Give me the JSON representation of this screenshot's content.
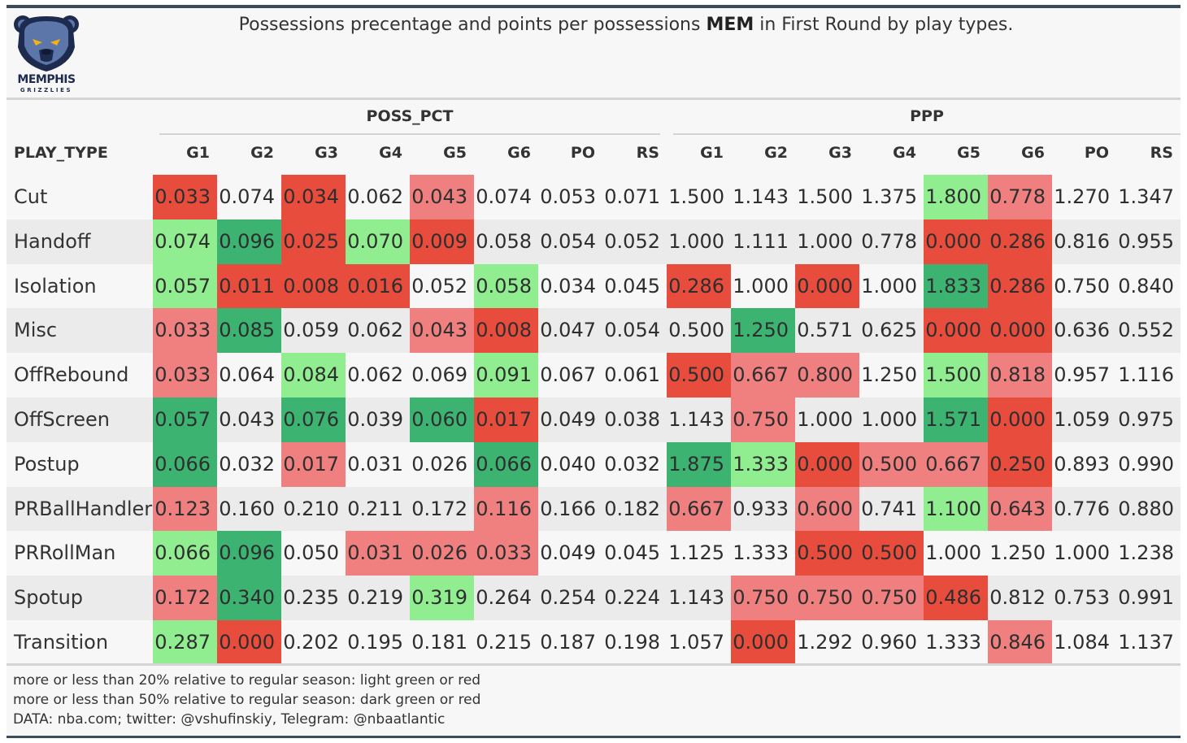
{
  "title": {
    "prefix": "Possessions precentage and points per possessions ",
    "team": "MEM",
    "suffix": " in First Round by play types."
  },
  "logo": {
    "word": "MEMPHIS",
    "sub": "GRIZZLIES"
  },
  "legend_colors": {
    "light_green": "#90ee90",
    "dark_green": "#3cb371",
    "light_red": "#f08080",
    "dark_red": "#e74c3c"
  },
  "chart_data": {
    "type": "table",
    "row_header": "PLAY_TYPE",
    "groups": [
      "POSS_PCT",
      "PPP"
    ],
    "columns": [
      "G1",
      "G2",
      "G3",
      "G4",
      "G5",
      "G6",
      "PO",
      "RS"
    ],
    "rows": [
      {
        "play_type": "Cut",
        "poss_pct": [
          "0.033",
          "0.074",
          "0.034",
          "0.062",
          "0.043",
          "0.074",
          "0.053",
          "0.071"
        ],
        "poss_pct_color": [
          "dr",
          "",
          "dr",
          "",
          "lr",
          "",
          "",
          ""
        ],
        "ppp": [
          "1.500",
          "1.143",
          "1.500",
          "1.375",
          "1.800",
          "0.778",
          "1.270",
          "1.347"
        ],
        "ppp_color": [
          "",
          "",
          "",
          "",
          "lg",
          "lr",
          "",
          ""
        ]
      },
      {
        "play_type": "Handoff",
        "poss_pct": [
          "0.074",
          "0.096",
          "0.025",
          "0.070",
          "0.009",
          "0.058",
          "0.054",
          "0.052"
        ],
        "poss_pct_color": [
          "lg",
          "dg",
          "dr",
          "lg",
          "dr",
          "",
          "",
          ""
        ],
        "ppp": [
          "1.000",
          "1.111",
          "1.000",
          "0.778",
          "0.000",
          "0.286",
          "0.816",
          "0.955"
        ],
        "ppp_color": [
          "",
          "",
          "",
          "",
          "dr",
          "dr",
          "",
          ""
        ]
      },
      {
        "play_type": "Isolation",
        "poss_pct": [
          "0.057",
          "0.011",
          "0.008",
          "0.016",
          "0.052",
          "0.058",
          "0.034",
          "0.045"
        ],
        "poss_pct_color": [
          "lg",
          "dr",
          "dr",
          "dr",
          "",
          "lg",
          "",
          ""
        ],
        "ppp": [
          "0.286",
          "1.000",
          "0.000",
          "1.000",
          "1.833",
          "0.286",
          "0.750",
          "0.840"
        ],
        "ppp_color": [
          "dr",
          "",
          "dr",
          "",
          "dg",
          "dr",
          "",
          ""
        ]
      },
      {
        "play_type": "Misc",
        "poss_pct": [
          "0.033",
          "0.085",
          "0.059",
          "0.062",
          "0.043",
          "0.008",
          "0.047",
          "0.054"
        ],
        "poss_pct_color": [
          "lr",
          "dg",
          "",
          "",
          "lr",
          "dr",
          "",
          ""
        ],
        "ppp": [
          "0.500",
          "1.250",
          "0.571",
          "0.625",
          "0.000",
          "0.000",
          "0.636",
          "0.552"
        ],
        "ppp_color": [
          "",
          "dg",
          "",
          "",
          "dr",
          "dr",
          "",
          ""
        ]
      },
      {
        "play_type": "OffRebound",
        "poss_pct": [
          "0.033",
          "0.064",
          "0.084",
          "0.062",
          "0.069",
          "0.091",
          "0.067",
          "0.061"
        ],
        "poss_pct_color": [
          "lr",
          "",
          "lg",
          "",
          "",
          "lg",
          "",
          ""
        ],
        "ppp": [
          "0.500",
          "0.667",
          "0.800",
          "1.250",
          "1.500",
          "0.818",
          "0.957",
          "1.116"
        ],
        "ppp_color": [
          "dr",
          "lr",
          "lr",
          "",
          "lg",
          "lr",
          "",
          ""
        ]
      },
      {
        "play_type": "OffScreen",
        "poss_pct": [
          "0.057",
          "0.043",
          "0.076",
          "0.039",
          "0.060",
          "0.017",
          "0.049",
          "0.038"
        ],
        "poss_pct_color": [
          "dg",
          "",
          "dg",
          "",
          "dg",
          "dr",
          "",
          ""
        ],
        "ppp": [
          "1.143",
          "0.750",
          "1.000",
          "1.000",
          "1.571",
          "0.000",
          "1.059",
          "0.975"
        ],
        "ppp_color": [
          "",
          "lr",
          "",
          "",
          "dg",
          "dr",
          "",
          ""
        ]
      },
      {
        "play_type": "Postup",
        "poss_pct": [
          "0.066",
          "0.032",
          "0.017",
          "0.031",
          "0.026",
          "0.066",
          "0.040",
          "0.032"
        ],
        "poss_pct_color": [
          "dg",
          "",
          "lr",
          "",
          "",
          "dg",
          "",
          ""
        ],
        "ppp": [
          "1.875",
          "1.333",
          "0.000",
          "0.500",
          "0.667",
          "0.250",
          "0.893",
          "0.990"
        ],
        "ppp_color": [
          "dg",
          "lg",
          "dr",
          "lr",
          "lr",
          "dr",
          "",
          ""
        ]
      },
      {
        "play_type": "PRBallHandler",
        "poss_pct": [
          "0.123",
          "0.160",
          "0.210",
          "0.211",
          "0.172",
          "0.116",
          "0.166",
          "0.182"
        ],
        "poss_pct_color": [
          "lr",
          "",
          "",
          "",
          "",
          "lr",
          "",
          ""
        ],
        "ppp": [
          "0.667",
          "0.933",
          "0.600",
          "0.741",
          "1.100",
          "0.643",
          "0.776",
          "0.880"
        ],
        "ppp_color": [
          "lr",
          "",
          "lr",
          "",
          "lg",
          "lr",
          "",
          ""
        ]
      },
      {
        "play_type": "PRRollMan",
        "poss_pct": [
          "0.066",
          "0.096",
          "0.050",
          "0.031",
          "0.026",
          "0.033",
          "0.049",
          "0.045"
        ],
        "poss_pct_color": [
          "lg",
          "dg",
          "",
          "lr",
          "lr",
          "lr",
          "",
          ""
        ],
        "ppp": [
          "1.125",
          "1.333",
          "0.500",
          "0.500",
          "1.000",
          "1.250",
          "1.000",
          "1.238"
        ],
        "ppp_color": [
          "",
          "",
          "dr",
          "dr",
          "",
          "",
          "",
          ""
        ]
      },
      {
        "play_type": "Spotup",
        "poss_pct": [
          "0.172",
          "0.340",
          "0.235",
          "0.219",
          "0.319",
          "0.264",
          "0.254",
          "0.224"
        ],
        "poss_pct_color": [
          "lr",
          "dg",
          "",
          "",
          "lg",
          "",
          "",
          ""
        ],
        "ppp": [
          "1.143",
          "0.750",
          "0.750",
          "0.750",
          "0.486",
          "0.812",
          "0.753",
          "0.991"
        ],
        "ppp_color": [
          "",
          "lr",
          "lr",
          "lr",
          "dr",
          "",
          "",
          ""
        ]
      },
      {
        "play_type": "Transition",
        "poss_pct": [
          "0.287",
          "0.000",
          "0.202",
          "0.195",
          "0.181",
          "0.215",
          "0.187",
          "0.198"
        ],
        "poss_pct_color": [
          "lg",
          "dr",
          "",
          "",
          "",
          "",
          "",
          ""
        ],
        "ppp": [
          "1.057",
          "0.000",
          "1.292",
          "0.960",
          "1.333",
          "0.846",
          "1.084",
          "1.137"
        ],
        "ppp_color": [
          "",
          "dr",
          "",
          "",
          "",
          "lr",
          "",
          ""
        ]
      }
    ]
  },
  "footer": {
    "line1": "more or less than 20% relative to regular season: light green or red",
    "line2": "more or less than 50% relative to regular season: dark green or red",
    "line3": "DATA: nba.com; twitter: @vshufinskiy, Telegram: @nbaatlantic"
  }
}
